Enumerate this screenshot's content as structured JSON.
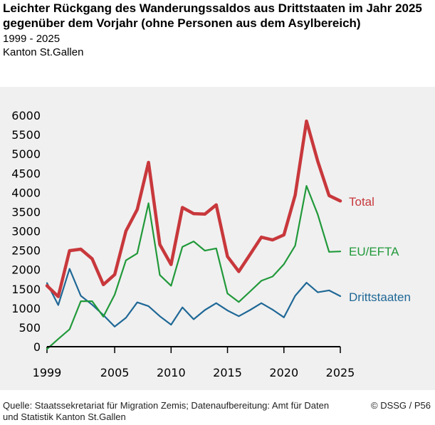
{
  "header": {
    "title": "Leichter Rückgang des Wanderungssaldos aus Drittstaaten im Jahr 2025 gegenüber dem Vorjahr (ohne Personen aus dem Asylbereich)",
    "period": "1999 -  2025",
    "region": "Kanton St.Gallen"
  },
  "footer": {
    "source": "Quelle: Staatssekretariat für Migration Zemis; Datenaufbereitung: Amt für Daten und Statistik Kanton St.Gallen",
    "copyright": "© DSSG / P56"
  },
  "chart_data": {
    "type": "line",
    "title": "Leichter Rückgang des Wanderungssaldos aus Drittstaaten im Jahr 2025 gegenüber dem Vorjahr (ohne Personen aus dem Asylbereich)",
    "xlabel": "",
    "ylabel": "",
    "x": [
      1999,
      2000,
      2001,
      2002,
      2003,
      2004,
      2005,
      2006,
      2007,
      2008,
      2009,
      2010,
      2011,
      2012,
      2013,
      2014,
      2015,
      2016,
      2017,
      2018,
      2019,
      2020,
      2021,
      2022,
      2023,
      2024,
      2025
    ],
    "xlim": [
      1999,
      2025
    ],
    "ylim": [
      0,
      6000
    ],
    "x_ticks": [
      "1999",
      "2005",
      "2010",
      "2015",
      "2020",
      "2025"
    ],
    "y_ticks": [
      "0",
      "500",
      "1000",
      "1500",
      "2000",
      "2500",
      "3000",
      "3500",
      "4000",
      "4500",
      "5000",
      "5500",
      "6000"
    ],
    "grid": false,
    "legend": "inline labels at right end of lines",
    "series": [
      {
        "name": "Total",
        "color": "#c8383c",
        "stroke": 4.5,
        "values": [
          1580,
          1300,
          2490,
          2530,
          2280,
          1610,
          1870,
          3000,
          3560,
          4780,
          2650,
          2130,
          3610,
          3450,
          3440,
          3680,
          2340,
          1950,
          2390,
          2840,
          2770,
          2900,
          3930,
          5850,
          4810,
          3920,
          3780
        ]
      },
      {
        "name": "EU/EFTA",
        "color": "#21993a",
        "stroke": 2.2,
        "values": [
          -60,
          200,
          450,
          1180,
          1180,
          780,
          1350,
          2240,
          2420,
          3720,
          1860,
          1580,
          2590,
          2730,
          2490,
          2550,
          1380,
          1160,
          1430,
          1710,
          1820,
          2140,
          2620,
          4170,
          3430,
          2460,
          2470
        ]
      },
      {
        "name": "Drittstaaten",
        "color": "#1f6896",
        "stroke": 2.2,
        "values": [
          1650,
          1080,
          2020,
          1320,
          1090,
          820,
          520,
          750,
          1150,
          1050,
          790,
          570,
          1020,
          710,
          950,
          1130,
          940,
          790,
          950,
          1130,
          960,
          760,
          1320,
          1660,
          1410,
          1460,
          1310
        ]
      }
    ]
  }
}
